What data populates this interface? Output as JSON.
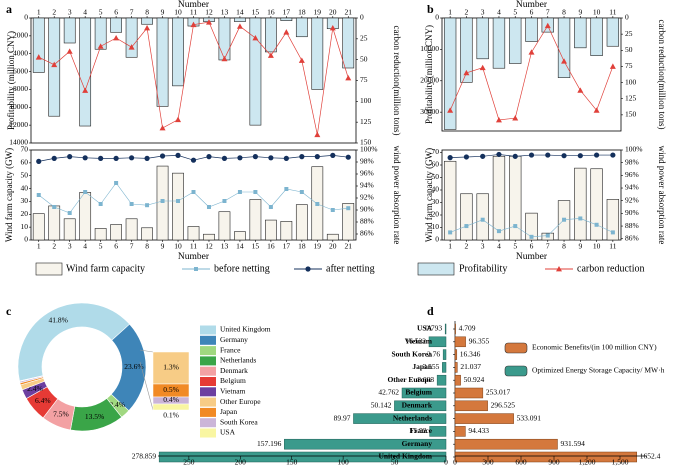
{
  "panel_labels": [
    "a",
    "b",
    "c",
    "d"
  ],
  "chart_data": [
    {
      "id": "a_top",
      "type": "bar+line",
      "title": "",
      "xlabel": "Number",
      "ylabel": "Profitability (million CNY)",
      "ylabel_right": "carbon reduction(million tons)",
      "x": [
        1,
        2,
        3,
        4,
        5,
        6,
        7,
        8,
        9,
        10,
        11,
        12,
        13,
        14,
        15,
        16,
        17,
        18,
        19,
        20,
        21
      ],
      "ylim": [
        0,
        14000
      ],
      "yticks": [
        "0",
        "2000",
        "4000",
        "6000",
        "8000",
        "10000",
        "12000",
        "14000"
      ],
      "ylim_right": [
        0,
        150
      ],
      "yticks_right": [
        "0",
        "25",
        "50",
        "75",
        "100",
        "125",
        "150"
      ],
      "series": [
        {
          "name": "Profitability",
          "axis": "left",
          "values": [
            6100,
            11000,
            2800,
            12100,
            3500,
            1600,
            4400,
            700,
            9900,
            7600,
            900,
            400,
            4700,
            400,
            12000,
            3800,
            300,
            2100,
            8000,
            1200,
            5600
          ]
        },
        {
          "name": "carbon reduction",
          "axis": "right",
          "values": [
            47,
            56,
            40,
            87,
            34,
            24,
            35,
            12,
            132,
            122,
            8,
            5,
            49,
            10,
            24,
            45,
            17,
            51,
            140,
            12,
            72
          ]
        }
      ]
    },
    {
      "id": "a_bottom",
      "type": "bar+line",
      "xlabel": "Number",
      "ylabel": "Wind farm capacity (GW)",
      "ylabel_right": "wind power absorption rate",
      "x": [
        1,
        2,
        3,
        4,
        5,
        6,
        7,
        8,
        9,
        10,
        11,
        12,
        13,
        14,
        15,
        16,
        17,
        18,
        19,
        20,
        21
      ],
      "ylim": [
        0,
        70
      ],
      "yticks": [
        "0",
        "10",
        "20",
        "30",
        "40",
        "50",
        "60",
        "70"
      ],
      "ylim_right": [
        85,
        100
      ],
      "yticks_right": [
        "86%",
        "88%",
        "90%",
        "92%",
        "94%",
        "96%",
        "98%",
        "100%"
      ],
      "series": [
        {
          "name": "Wind farm capacity",
          "axis": "left",
          "values": [
            20.5,
            26.5,
            16.5,
            37,
            9,
            12,
            16.5,
            9.5,
            57.5,
            52,
            10.5,
            4.5,
            22,
            6.5,
            31.5,
            15.5,
            14.5,
            27.5,
            57,
            4.5,
            28.5
          ]
        },
        {
          "name": "before netting",
          "axis": "right",
          "values": [
            92.5,
            90.5,
            89.5,
            93,
            91,
            94.5,
            91,
            90.8,
            91.5,
            91.5,
            93,
            90.5,
            91.5,
            93,
            93,
            90.5,
            93.5,
            93,
            91,
            90,
            90.3
          ]
        },
        {
          "name": "after netting",
          "axis": "right",
          "values": [
            98.1,
            98.6,
            98.9,
            98.7,
            98.6,
            98.6,
            98.7,
            98.6,
            99,
            99.1,
            98.3,
            98.9,
            98.6,
            98.7,
            98.9,
            98.7,
            98.6,
            98.9,
            98.9,
            99.1,
            98.8
          ]
        }
      ]
    },
    {
      "id": "b_top",
      "type": "bar+line",
      "xlabel": "Number",
      "ylabel": "Profitability (million CNY)",
      "ylabel_right": "carbon reduction(million tons)",
      "x": [
        1,
        2,
        3,
        4,
        5,
        6,
        7,
        8,
        9,
        10,
        11
      ],
      "ylim": [
        0,
        36000
      ],
      "yticks": [
        "0",
        "10000",
        "20000",
        "30000"
      ],
      "ylim_right": [
        0,
        175
      ],
      "yticks_right": [
        "0",
        "25",
        "50",
        "75",
        "100",
        "125",
        "150"
      ],
      "series": [
        {
          "name": "Profitability",
          "axis": "left",
          "values": [
            35500,
            20500,
            13000,
            16000,
            14500,
            7500,
            4500,
            19000,
            9500,
            12000,
            9000
          ]
        },
        {
          "name": "carbon reduction",
          "axis": "right",
          "values": [
            143,
            85,
            77,
            158,
            155,
            53,
            12,
            67,
            112,
            143,
            75
          ]
        }
      ]
    },
    {
      "id": "b_bottom",
      "type": "bar+line",
      "xlabel": "Number",
      "ylabel": "Wind farm capacity (GW)",
      "ylabel_right": "wind power absorption rate",
      "x": [
        1,
        2,
        3,
        4,
        5,
        6,
        7,
        8,
        9,
        10,
        11
      ],
      "ylim": [
        0,
        72
      ],
      "yticks": [
        "0",
        "10",
        "20",
        "30",
        "40",
        "50",
        "60",
        "70"
      ],
      "ylim_right": [
        85.8,
        100
      ],
      "yticks_right": [
        "86%",
        "88%",
        "90%",
        "92%",
        "94%",
        "96%",
        "98%",
        "100%"
      ],
      "series": [
        {
          "name": "Wind farm capacity",
          "axis": "left",
          "values": [
            63,
            37,
            37,
            67,
            67,
            21.5,
            5.5,
            31.5,
            57.5,
            57,
            32.5
          ]
        },
        {
          "name": "before netting",
          "axis": "right",
          "values": [
            87,
            88,
            89,
            87.2,
            88,
            86.3,
            86.5,
            89,
            89.2,
            88.2,
            87
          ]
        },
        {
          "name": "after netting",
          "axis": "right",
          "values": [
            98.8,
            98.9,
            99,
            99.3,
            99,
            99.2,
            99.2,
            99.1,
            99.1,
            99.2,
            99.2
          ]
        }
      ]
    },
    {
      "id": "c_donut",
      "type": "pie",
      "labels": [
        "United Kingdom",
        "Germany",
        "France",
        "Netherlands",
        "Denmark",
        "Belgium",
        "Vietnam",
        "Other Europe",
        "Japan",
        "South Korea",
        "USA"
      ],
      "values": [
        41.8,
        23.6,
        2.4,
        13.5,
        7.5,
        6.4,
        2.4,
        1.3,
        0.5,
        0.4,
        0.1
      ],
      "slice_labels": [
        "41.8%",
        "23.6%",
        "2.4%",
        "13.5%",
        "7.5%",
        "6.4%",
        "2.4%",
        "",
        "",
        "",
        ""
      ],
      "small_slice_labels": [
        "1.3%",
        "0.5%",
        "0.4%",
        "0.1%"
      ]
    },
    {
      "id": "c_bars",
      "type": "bar",
      "categories": [
        "USA",
        "Vietnam",
        "South Korea",
        "Japan",
        "Other Europe",
        "Belgium",
        "Denmark",
        "Netherlands",
        "France",
        "Germany",
        "United Kingdom"
      ],
      "values": [
        0.793,
        16.522,
        2.76,
        3.555,
        8.603,
        42.762,
        50.142,
        89.97,
        15.92,
        157.196,
        278.859
      ],
      "value_labels": [
        "0.793",
        "16.522",
        "2.76",
        "3.555",
        "8.603",
        "42.762",
        "50.142",
        "89.97",
        "15.92",
        "157.196",
        "278.859"
      ],
      "xlim": [
        0,
        280
      ],
      "xticks": [
        "250",
        "200",
        "150",
        "100",
        "50",
        "0"
      ]
    },
    {
      "id": "d_bars",
      "type": "bar",
      "categories": [
        "USA",
        "Vietnam",
        "South Korea",
        "Japan",
        "Other Europe",
        "Belgium",
        "Denmark",
        "Netherlands",
        "France",
        "Germany",
        "United Kingdom"
      ],
      "series": [
        {
          "name": "Economic Benefits/(in 100 million CNY)",
          "values": [
            4.709,
            96.355,
            16.346,
            21.037,
            50.924,
            253.017,
            296.525,
            533.091,
            94.433,
            931.594,
            1652.4
          ]
        }
      ],
      "value_labels": [
        "4.709",
        "96.355",
        "16.346",
        "21.037",
        "50.924",
        "253.017",
        "296.525",
        "533.091",
        "94.433",
        "931.594",
        "1652.4"
      ],
      "xlim": [
        0,
        1700
      ],
      "xticks": [
        "0",
        "300",
        "600",
        "900",
        "1,200",
        "1,500"
      ]
    }
  ],
  "legend_ab": {
    "wind_capacity": "Wind farm capacity",
    "before": "before netting",
    "after": "after netting",
    "profit": "Profitability",
    "carbon": "carbon reduction"
  },
  "legend_d": {
    "econ": "Economic Benefits/(in 100 million CNY)",
    "storage": "Optimized Energy Storage Capacity/ MW·h"
  },
  "colors": {
    "bar_fill_ab": "#f7f4ec",
    "profit_fill": "#cde7f0",
    "carbon": "#e0403a",
    "before": "#7cb4cf",
    "after": "#14305c",
    "teal": "#3b9a8c",
    "orange": "#d4783d",
    "pie": [
      "#b0dbe9",
      "#3e85b8",
      "#a0d880",
      "#3aa548",
      "#f3a1a3",
      "#e63a35",
      "#6c3fa0",
      "#f7cc86",
      "#f18a25",
      "#cbb5d8",
      "#f9f6a2"
    ]
  }
}
